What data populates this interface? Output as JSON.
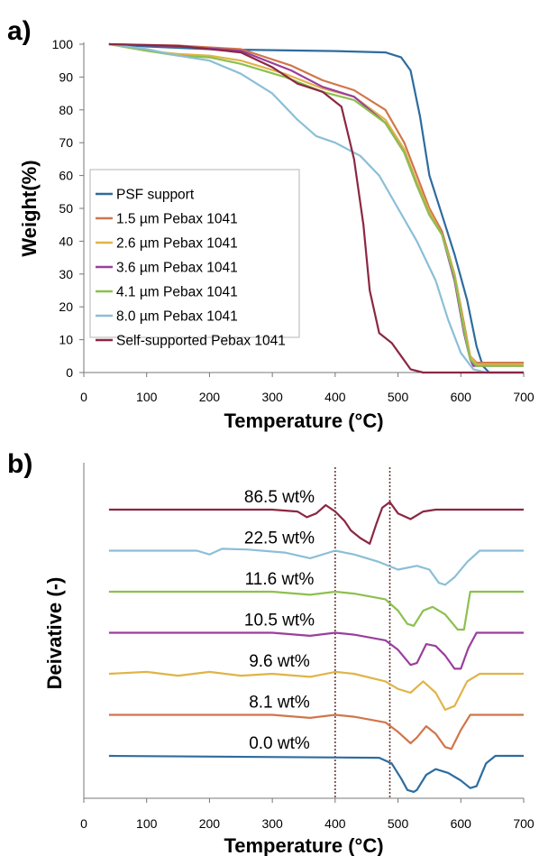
{
  "chart_data": [
    {
      "panel": "a)",
      "type": "line",
      "xlabel": "Temperature (°C)",
      "ylabel": "Weight(%)",
      "xlim": [
        0,
        700
      ],
      "ylim": [
        0,
        100
      ],
      "xticks": [
        0,
        100,
        200,
        300,
        400,
        500,
        600,
        700
      ],
      "yticks": [
        0,
        10,
        20,
        30,
        40,
        50,
        60,
        70,
        80,
        90,
        100
      ],
      "legend_position": "bottom-left",
      "series": [
        {
          "name": "PSF support",
          "color": "#2e6c9e",
          "x": [
            40,
            100,
            200,
            300,
            400,
            480,
            505,
            520,
            535,
            550,
            570,
            590,
            610,
            625,
            635,
            645,
            660,
            700
          ],
          "y": [
            100,
            99.3,
            98.5,
            98.2,
            97.9,
            97.5,
            96,
            92,
            78,
            60,
            48,
            36,
            22,
            8,
            2,
            0,
            0,
            0
          ]
        },
        {
          "name": "1.5 µm Pebax 1041",
          "color": "#d0764a",
          "x": [
            40,
            150,
            250,
            330,
            380,
            430,
            480,
            510,
            530,
            550,
            570,
            590,
            605,
            615,
            625,
            700
          ],
          "y": [
            100,
            99.6,
            98.5,
            93.5,
            89,
            86,
            80,
            70,
            60,
            50,
            43,
            30,
            15,
            5,
            3,
            3
          ]
        },
        {
          "name": "2.6 µm Pebax 1041",
          "color": "#e0b44a",
          "x": [
            40,
            100,
            150,
            200,
            250,
            320,
            380,
            430,
            480,
            510,
            530,
            550,
            570,
            590,
            605,
            615,
            625,
            700
          ],
          "y": [
            100,
            98,
            97,
            96.5,
            95,
            91,
            86.5,
            84,
            77,
            68,
            58,
            49,
            42,
            30,
            14,
            5,
            2.5,
            2.5
          ]
        },
        {
          "name": "3.6 µm Pebax 1041",
          "color": "#9a3f9e",
          "x": [
            40,
            150,
            250,
            330,
            380,
            430,
            480,
            510,
            530,
            550,
            570,
            590,
            605,
            615,
            620,
            700
          ],
          "y": [
            100,
            99.4,
            98,
            92,
            87,
            84,
            76,
            67,
            57,
            48,
            42,
            28,
            12,
            4,
            2,
            2
          ]
        },
        {
          "name": "4.1 µm Pebax 1041",
          "color": "#8cc04e",
          "x": [
            40,
            100,
            150,
            200,
            250,
            320,
            380,
            430,
            480,
            510,
            530,
            550,
            570,
            590,
            605,
            615,
            625,
            700
          ],
          "y": [
            100,
            98,
            96.5,
            96,
            94,
            90,
            85.5,
            83,
            76,
            67,
            57,
            48,
            42,
            29,
            13,
            4,
            2,
            2
          ]
        },
        {
          "name": "8.0 µm Pebax 1041",
          "color": "#8bbfd6",
          "x": [
            40,
            100,
            150,
            200,
            250,
            300,
            340,
            370,
            400,
            440,
            470,
            500,
            530,
            560,
            580,
            600,
            620,
            640,
            700
          ],
          "y": [
            100,
            98.5,
            96.5,
            95,
            91,
            85,
            77,
            72,
            70,
            66,
            60,
            50,
            40,
            28,
            16,
            6,
            1,
            0,
            0
          ]
        },
        {
          "name": "Self-supported Pebax 1041",
          "color": "#8b2742",
          "x": [
            40,
            150,
            250,
            300,
            340,
            380,
            410,
            430,
            445,
            455,
            470,
            490,
            505,
            520,
            540,
            560,
            700
          ],
          "y": [
            100,
            99.5,
            97.5,
            93,
            88,
            85.5,
            81,
            65,
            45,
            25,
            12,
            9,
            5,
            1,
            0,
            0,
            0
          ]
        }
      ]
    },
    {
      "panel": "b)",
      "type": "line",
      "xlabel": "Temperature (°C)",
      "ylabel": "Deivative (-)",
      "xlim": [
        0,
        700
      ],
      "xticks": [
        0,
        100,
        200,
        300,
        400,
        500,
        600,
        700
      ],
      "vertical_lines_x": [
        400,
        487
      ],
      "series": [
        {
          "label": "86.5 wt%",
          "color": "#8b2742",
          "offset": 6,
          "x": [
            40,
            300,
            340,
            355,
            370,
            385,
            400,
            415,
            425,
            440,
            455,
            465,
            475,
            487,
            500,
            520,
            540,
            560,
            700
          ],
          "y": [
            0,
            0,
            -0.05,
            -0.2,
            -0.1,
            0.12,
            -0.05,
            -0.3,
            -0.55,
            -0.75,
            -0.9,
            -0.4,
            0.05,
            0.2,
            -0.1,
            -0.25,
            -0.05,
            0,
            0
          ]
        },
        {
          "label": "22.5 wt%",
          "color": "#8bbfd6",
          "offset": 5,
          "x": [
            40,
            180,
            200,
            220,
            260,
            320,
            360,
            400,
            430,
            470,
            500,
            530,
            550,
            565,
            575,
            590,
            610,
            630,
            650,
            700
          ],
          "y": [
            0,
            0,
            -0.1,
            0.05,
            0.03,
            -0.05,
            -0.2,
            0,
            -0.1,
            -0.3,
            -0.5,
            -0.4,
            -0.5,
            -0.85,
            -0.9,
            -0.7,
            -0.3,
            0,
            0,
            0
          ]
        },
        {
          "label": "11.6 wt%",
          "color": "#8cc04e",
          "offset": 4,
          "x": [
            40,
            300,
            360,
            400,
            430,
            480,
            500,
            515,
            525,
            540,
            555,
            575,
            595,
            605,
            615,
            700
          ],
          "y": [
            0,
            0,
            -0.08,
            0,
            -0.05,
            -0.2,
            -0.5,
            -0.85,
            -0.9,
            -0.5,
            -0.4,
            -0.6,
            -1.0,
            -1.0,
            0,
            0
          ]
        },
        {
          "label": "10.5 wt%",
          "color": "#9a3f9e",
          "offset": 3,
          "x": [
            40,
            300,
            360,
            400,
            430,
            480,
            500,
            520,
            530,
            545,
            560,
            575,
            590,
            600,
            612,
            625,
            700
          ],
          "y": [
            0,
            0,
            -0.08,
            0,
            -0.05,
            -0.2,
            -0.45,
            -0.85,
            -0.8,
            -0.3,
            -0.35,
            -0.6,
            -0.95,
            -0.95,
            -0.4,
            0,
            0
          ]
        },
        {
          "label": "9.6 wt%",
          "color": "#e0b44a",
          "offset": 2,
          "x": [
            40,
            100,
            150,
            200,
            250,
            300,
            360,
            400,
            430,
            480,
            500,
            520,
            540,
            560,
            575,
            590,
            610,
            630,
            700
          ],
          "y": [
            0,
            0.05,
            -0.05,
            0.05,
            -0.05,
            0,
            -0.08,
            0.05,
            0,
            -0.2,
            -0.4,
            -0.5,
            -0.2,
            -0.5,
            -0.95,
            -0.85,
            -0.2,
            0,
            0
          ]
        },
        {
          "label": "8.1 wt%",
          "color": "#d0764a",
          "offset": 1,
          "x": [
            40,
            300,
            360,
            400,
            430,
            480,
            500,
            520,
            530,
            545,
            560,
            575,
            585,
            600,
            615,
            700
          ],
          "y": [
            0,
            0,
            -0.08,
            0,
            -0.05,
            -0.2,
            -0.45,
            -0.75,
            -0.6,
            -0.3,
            -0.5,
            -0.85,
            -0.9,
            -0.4,
            0,
            0
          ]
        },
        {
          "label": "0.0 wt%",
          "color": "#2e6c9e",
          "offset": 0,
          "x": [
            40,
            470,
            490,
            505,
            515,
            525,
            530,
            545,
            560,
            580,
            600,
            615,
            625,
            640,
            655,
            700
          ],
          "y": [
            0,
            -0.05,
            -0.2,
            -0.6,
            -0.9,
            -0.95,
            -0.9,
            -0.5,
            -0.35,
            -0.45,
            -0.65,
            -0.85,
            -0.8,
            -0.2,
            0,
            0
          ]
        }
      ]
    }
  ]
}
